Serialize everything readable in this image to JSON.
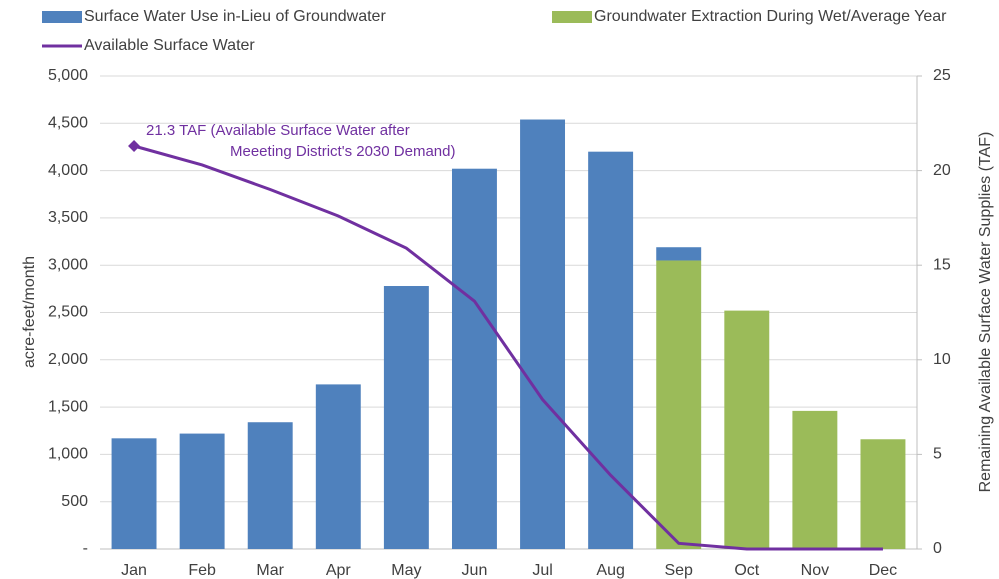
{
  "chart_data": {
    "type": "bar",
    "categories": [
      "Jan",
      "Feb",
      "Mar",
      "Apr",
      "May",
      "Jun",
      "Jul",
      "Aug",
      "Sep",
      "Oct",
      "Nov",
      "Dec"
    ],
    "series": [
      {
        "name": "Surface Water Use  in-Lieu of Groundwater",
        "color": "#4f81bd",
        "type": "bar",
        "values": [
          1170,
          1220,
          1340,
          1740,
          2780,
          4020,
          4540,
          4200,
          140,
          0,
          0,
          0
        ]
      },
      {
        "name": "Groundwater Extraction During Wet/Average Year",
        "color": "#9bbb59",
        "type": "bar",
        "values": [
          0,
          0,
          0,
          0,
          0,
          0,
          0,
          0,
          3050,
          2520,
          1460,
          1160
        ]
      },
      {
        "name": "Available Surface Water",
        "color": "#7030a0",
        "type": "line",
        "axis": "y2",
        "values": [
          21.3,
          20.3,
          19.0,
          17.6,
          15.9,
          13.1,
          7.9,
          3.9,
          0.3,
          0,
          0,
          0
        ]
      }
    ],
    "ylabel": "acre-feet/month",
    "y2label": "Remaining Available Surface Water Supplies (TAF)",
    "ylim": [
      0,
      5000
    ],
    "yticks": [
      {
        "value": 0,
        "label": "-"
      },
      500,
      {
        "value": 1000,
        "label": "1,000"
      },
      {
        "value": 1500,
        "label": "1,500"
      },
      {
        "value": 2000,
        "label": "2,000"
      },
      {
        "value": 2500,
        "label": "2,500"
      },
      {
        "value": 3000,
        "label": "3,000"
      },
      {
        "value": 3500,
        "label": "3,500"
      },
      {
        "value": 4000,
        "label": "4,000"
      },
      {
        "value": 4500,
        "label": "4,500"
      },
      {
        "value": 5000,
        "label": "5,000"
      }
    ],
    "y2lim": [
      0,
      25
    ],
    "y2ticks": [
      0,
      5,
      10,
      15,
      20,
      25
    ],
    "annotations": [
      "21.3 TAF (Available Surface Water after",
      "Meeeting District's 2030 Demand)"
    ],
    "grid": true,
    "stacked": true
  }
}
